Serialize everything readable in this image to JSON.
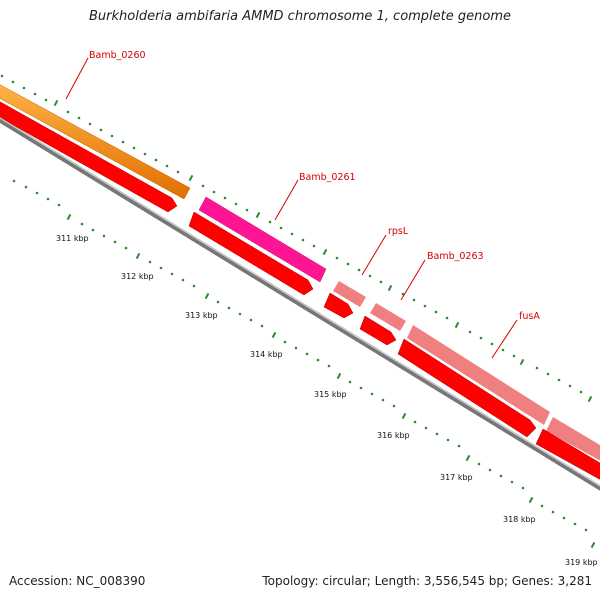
{
  "title": "Burkholderia ambifaria AMMD chromosome 1, complete genome",
  "footer": {
    "accession": "Accession: NC_008390",
    "topology": "Topology: circular; Length: 3,556,545 bp; Genes: 3,281"
  },
  "genes": [
    {
      "name": "Bamb_0260",
      "color": "#ff8a00"
    },
    {
      "name": "Bamb_0261",
      "color": "#ff1493"
    },
    {
      "name": "rpsL",
      "color": "#f08080"
    },
    {
      "name": "Bamb_0263",
      "color": "#f08080"
    },
    {
      "name": "fusA",
      "color": "#f08080"
    }
  ],
  "ticks": [
    "311 kbp",
    "312 kbp",
    "313 kbp",
    "314 kbp",
    "315 kbp",
    "316 kbp",
    "317 kbp",
    "318 kbp",
    "319 kbp"
  ],
  "colors": {
    "cds": "#ff0000",
    "backbone": "#808080",
    "tick_mark": "#2e8b2e",
    "label": "#d40000"
  }
}
